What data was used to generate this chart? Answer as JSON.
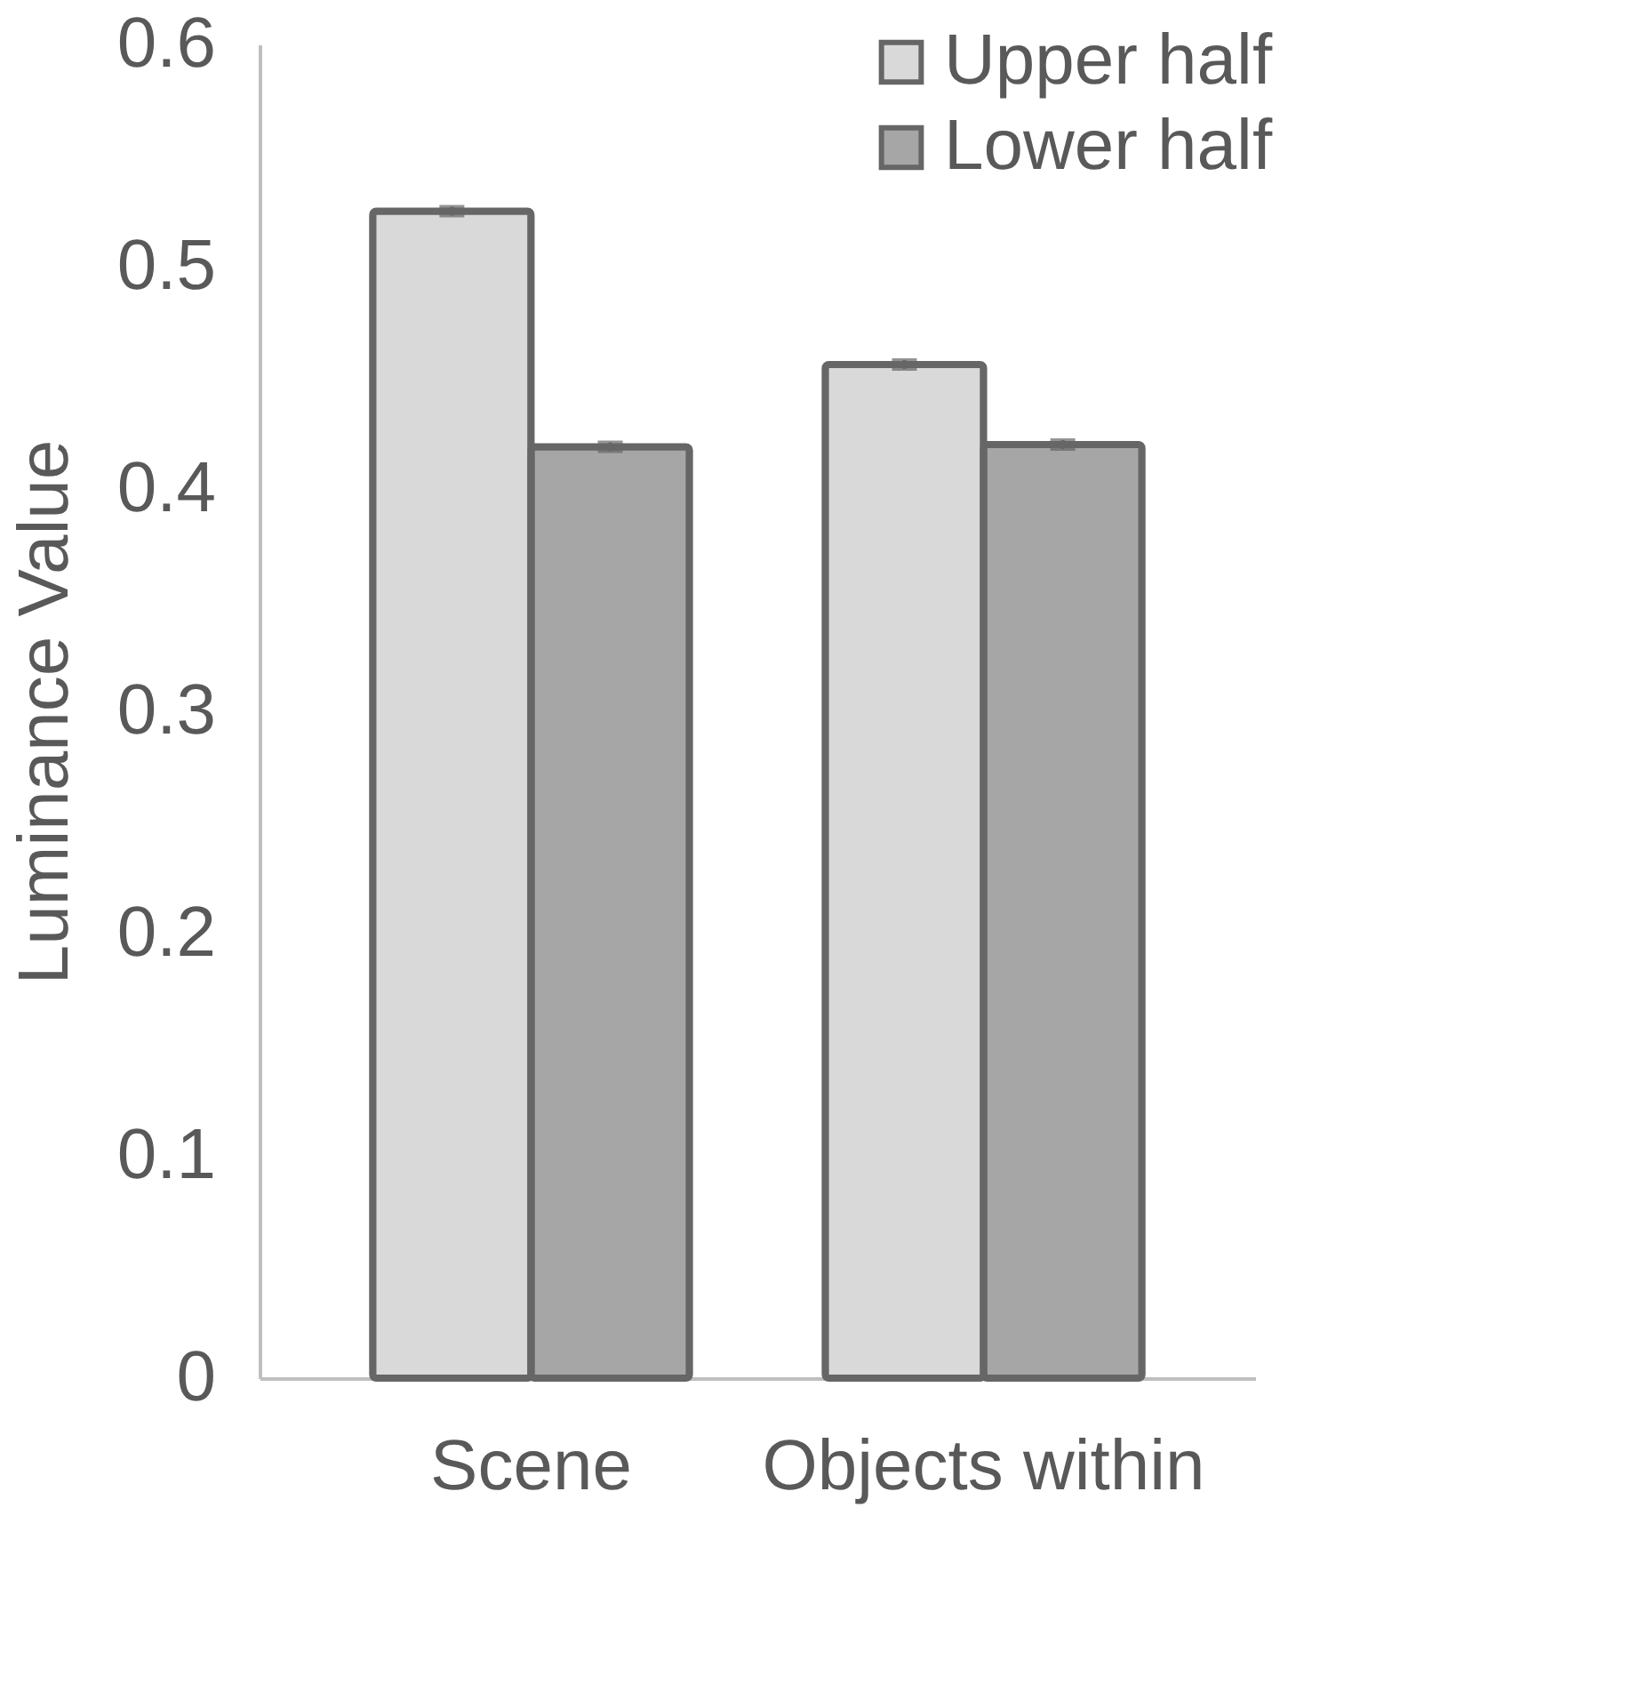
{
  "chart_data": {
    "type": "bar",
    "ylabel": "Luminance Value",
    "categories": [
      "Scene",
      "Objects within"
    ],
    "series": [
      {
        "name": "Upper half",
        "color": "#d9d9d9",
        "values": [
          0.525,
          0.456
        ],
        "errors": [
          0.002,
          0.002
        ]
      },
      {
        "name": "Lower half",
        "color": "#a6a6a6",
        "values": [
          0.419,
          0.42
        ],
        "errors": [
          0.002,
          0.002
        ]
      }
    ],
    "ylim": [
      0,
      0.6
    ],
    "yticks": [
      0,
      0.1,
      0.2,
      0.3,
      0.4,
      0.5,
      0.6
    ],
    "grid": false,
    "legend": "top right"
  }
}
